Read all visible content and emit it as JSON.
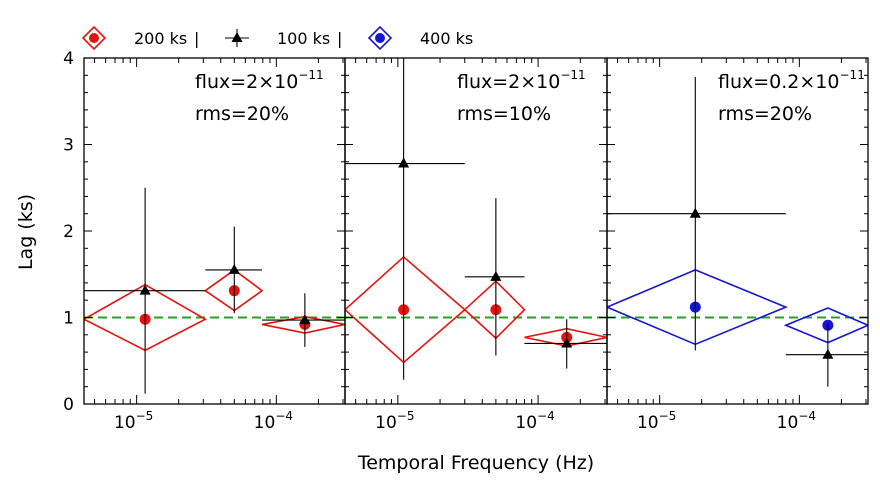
{
  "chart_data": {
    "type": "scatter",
    "xlabel": "Temporal Frequency (Hz)",
    "ylabel": "Lag (ks)",
    "ylim": [
      0,
      4
    ],
    "y_ticks": [
      "0",
      "1",
      "2",
      "3",
      "4"
    ],
    "xscale": "log",
    "xlim": [
      4.2e-06,
      0.00031
    ],
    "x_ticks": [
      {
        "value": 1e-05,
        "base": "10",
        "exp": "−5"
      },
      {
        "value": 0.0001,
        "base": "10",
        "exp": "−4"
      }
    ],
    "reference_line": {
      "y": 1,
      "style": "dashed",
      "color": "#2a9d2a"
    },
    "legend": [
      {
        "label": "200 ks",
        "sep": "|",
        "marker": "diamond-dot",
        "color": "#e8120c"
      },
      {
        "label": "100 ks",
        "sep": "|",
        "marker": "triangle",
        "color": "#000000"
      },
      {
        "label": "400 ks",
        "sep": "",
        "marker": "diamond-dot",
        "color": "#1515d6"
      }
    ],
    "panels": [
      {
        "flux_text": "flux=2×10",
        "flux_exp": "−11",
        "rms_text": "rms=20%",
        "series": [
          {
            "name": "200 ks",
            "color": "#e8120c",
            "marker": "diamond-dot",
            "points": [
              {
                "x": 1.15e-05,
                "y": 0.98,
                "xlo": 4.2e-06,
                "xhi": 3.1e-05,
                "ylo": 0.62,
                "yhi": 1.38
              },
              {
                "x": 5e-05,
                "y": 1.31,
                "xlo": 3.1e-05,
                "xhi": 7.9e-05,
                "ylo": 1.08,
                "yhi": 1.55
              },
              {
                "x": 0.00016,
                "y": 0.92,
                "xlo": 7.9e-05,
                "xhi": 0.00031,
                "ylo": 0.82,
                "yhi": 1.01
              }
            ]
          },
          {
            "name": "100 ks",
            "color": "#000000",
            "marker": "triangle",
            "points": [
              {
                "x": 1.15e-05,
                "y": 1.31,
                "xlo": 4.2e-06,
                "xhi": 3.1e-05,
                "ylo": 0.12,
                "yhi": 2.5
              },
              {
                "x": 5e-05,
                "y": 1.55,
                "xlo": 3.1e-05,
                "xhi": 7.9e-05,
                "ylo": 1.05,
                "yhi": 2.05
              },
              {
                "x": 0.00016,
                "y": 0.97,
                "xlo": 7.9e-05,
                "xhi": 0.00031,
                "ylo": 0.66,
                "yhi": 1.28
              }
            ]
          }
        ]
      },
      {
        "flux_text": "flux=2×10",
        "flux_exp": "−11",
        "rms_text": "rms=10%",
        "series": [
          {
            "name": "200 ks",
            "color": "#e8120c",
            "marker": "diamond-dot",
            "points": [
              {
                "x": 1.1e-05,
                "y": 1.09,
                "xlo": 4.2e-06,
                "xhi": 3e-05,
                "ylo": 0.48,
                "yhi": 1.7
              },
              {
                "x": 5e-05,
                "y": 1.09,
                "xlo": 3e-05,
                "xhi": 8e-05,
                "ylo": 0.76,
                "yhi": 1.42
              },
              {
                "x": 0.00016,
                "y": 0.77,
                "xlo": 8e-05,
                "xhi": 0.00031,
                "ylo": 0.67,
                "yhi": 0.87
              }
            ]
          },
          {
            "name": "100 ks",
            "color": "#000000",
            "marker": "triangle",
            "points": [
              {
                "x": 1.1e-05,
                "y": 2.78,
                "xlo": 4.2e-06,
                "xhi": 3e-05,
                "ylo": 0.28,
                "yhi": 4.0
              },
              {
                "x": 5e-05,
                "y": 1.47,
                "xlo": 3e-05,
                "xhi": 8e-05,
                "ylo": 0.56,
                "yhi": 2.38
              },
              {
                "x": 0.00016,
                "y": 0.7,
                "xlo": 8e-05,
                "xhi": 0.00031,
                "ylo": 0.41,
                "yhi": 0.98
              }
            ]
          }
        ]
      },
      {
        "flux_text": "flux=0.2×10",
        "flux_exp": "−11",
        "rms_text": "rms=20%",
        "series": [
          {
            "name": "400 ks",
            "color": "#1515d6",
            "marker": "diamond-dot",
            "points": [
              {
                "x": 1.8e-05,
                "y": 1.12,
                "xlo": 4.2e-06,
                "xhi": 8e-05,
                "ylo": 0.69,
                "yhi": 1.55
              },
              {
                "x": 0.00016,
                "y": 0.91,
                "xlo": 8e-05,
                "xhi": 0.00031,
                "ylo": 0.71,
                "yhi": 1.11
              }
            ]
          },
          {
            "name": "100 ks",
            "color": "#000000",
            "marker": "triangle",
            "points": [
              {
                "x": 1.8e-05,
                "y": 2.2,
                "xlo": 4.2e-06,
                "xhi": 8e-05,
                "ylo": 0.62,
                "yhi": 3.78
              },
              {
                "x": 0.00016,
                "y": 0.57,
                "xlo": 8e-05,
                "xhi": 0.00031,
                "ylo": 0.2,
                "yhi": 0.93
              }
            ]
          }
        ]
      }
    ]
  }
}
